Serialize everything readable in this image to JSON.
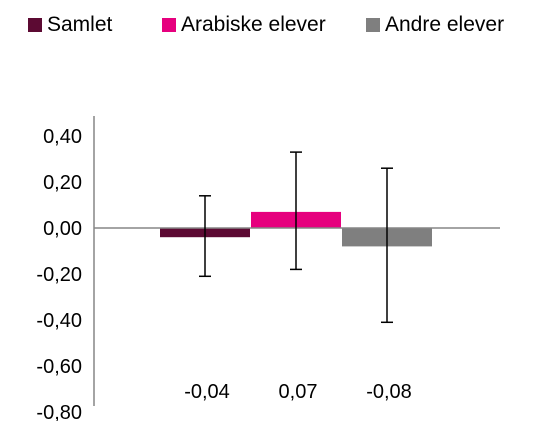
{
  "chart_data": {
    "type": "bar",
    "categories": [
      "Samlet",
      "Arabiske elever",
      "Andre elever"
    ],
    "values": [
      -0.04,
      0.07,
      -0.08
    ],
    "error_low": [
      -0.21,
      -0.18,
      -0.41
    ],
    "error_high": [
      0.14,
      0.33,
      0.26
    ],
    "data_labels": [
      "-0,04",
      "0,07",
      "-0,08"
    ],
    "colors": [
      "#5c0a33",
      "#e6007e",
      "#7f7f7f"
    ],
    "ylim": [
      -0.8,
      0.4
    ],
    "yticks": [
      0.4,
      0.2,
      0.0,
      -0.2,
      -0.4,
      -0.6,
      -0.8
    ],
    "ytick_labels": [
      "0,40",
      "0,20",
      "0,00",
      "-0,20",
      "-0,40",
      "-0,60",
      "-0,80"
    ],
    "legend": {
      "position": "top",
      "entries": [
        "Samlet",
        "Arabiske elever",
        "Andre elever"
      ]
    },
    "grid": false,
    "title": "",
    "xlabel": "",
    "ylabel": ""
  }
}
